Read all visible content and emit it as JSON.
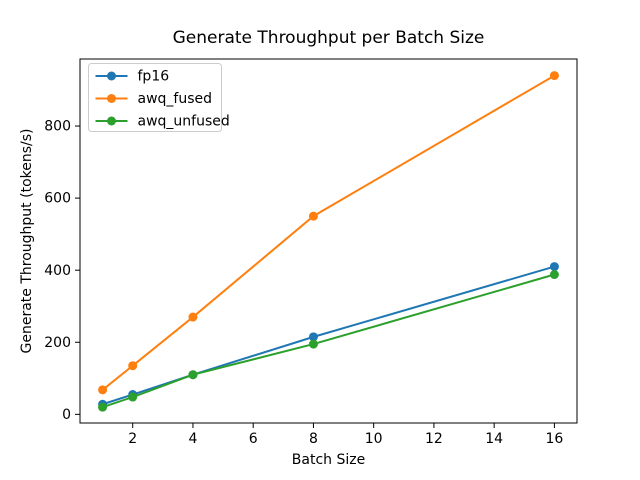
{
  "chart_data": {
    "type": "line",
    "title": "Generate Throughput per Batch Size",
    "xlabel": "Batch Size",
    "ylabel": "Generate Throughput (tokens/s)",
    "x": [
      1,
      2,
      4,
      8,
      16
    ],
    "series": [
      {
        "name": "fp16",
        "color": "#1f77b4",
        "values": [
          28,
          55,
          110,
          215,
          410
        ]
      },
      {
        "name": "awq_fused",
        "color": "#ff7f0e",
        "values": [
          68,
          135,
          270,
          550,
          940
        ]
      },
      {
        "name": "awq_unfused",
        "color": "#2ca02c",
        "values": [
          20,
          48,
          110,
          195,
          388
        ]
      }
    ],
    "xticks": [
      2,
      4,
      6,
      8,
      10,
      12,
      14,
      16
    ],
    "yticks": [
      0,
      200,
      400,
      600,
      800
    ],
    "xlim": [
      0.25,
      16.75
    ],
    "ylim": [
      -24,
      986
    ],
    "legend_position": "upper-left",
    "grid": false,
    "marker": "o",
    "axis_color": "#000000",
    "background_color": "#ffffff",
    "legend_border_color": "#cccccc"
  }
}
